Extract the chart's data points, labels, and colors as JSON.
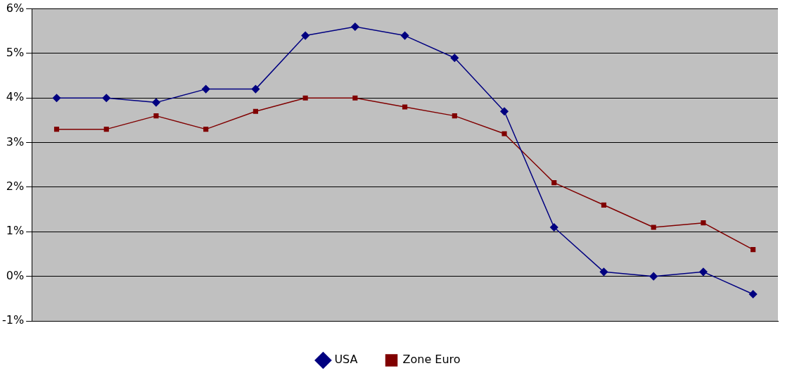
{
  "chart_data": {
    "type": "line",
    "categories": [
      null,
      null,
      null,
      null,
      null,
      null,
      null,
      null,
      null,
      null,
      null,
      null,
      null,
      null,
      null
    ],
    "series": [
      {
        "name": "USA",
        "color": "#000080",
        "marker": "diamond",
        "values": [
          4.0,
          4.0,
          3.9,
          4.2,
          4.2,
          5.4,
          5.6,
          5.4,
          4.9,
          3.7,
          1.1,
          0.1,
          0.0,
          0.1,
          -0.4
        ]
      },
      {
        "name": "Zone Euro",
        "color": "#800000",
        "marker": "square",
        "values": [
          3.3,
          3.3,
          3.6,
          3.3,
          3.7,
          4.0,
          4.0,
          3.8,
          3.6,
          3.2,
          2.1,
          1.6,
          1.1,
          1.2,
          0.6
        ]
      }
    ],
    "ylim": [
      -1,
      6
    ],
    "yticks": [
      {
        "value": -1,
        "label": "-1%"
      },
      {
        "value": 0,
        "label": "0%"
      },
      {
        "value": 1,
        "label": "1%"
      },
      {
        "value": 2,
        "label": "2%"
      },
      {
        "value": 3,
        "label": "3%"
      },
      {
        "value": 4,
        "label": "4%"
      },
      {
        "value": 5,
        "label": "5%"
      },
      {
        "value": 6,
        "label": "6%"
      }
    ],
    "grid": "y",
    "legend": "bottom",
    "tick_labels": "y",
    "line_style": "solid"
  }
}
